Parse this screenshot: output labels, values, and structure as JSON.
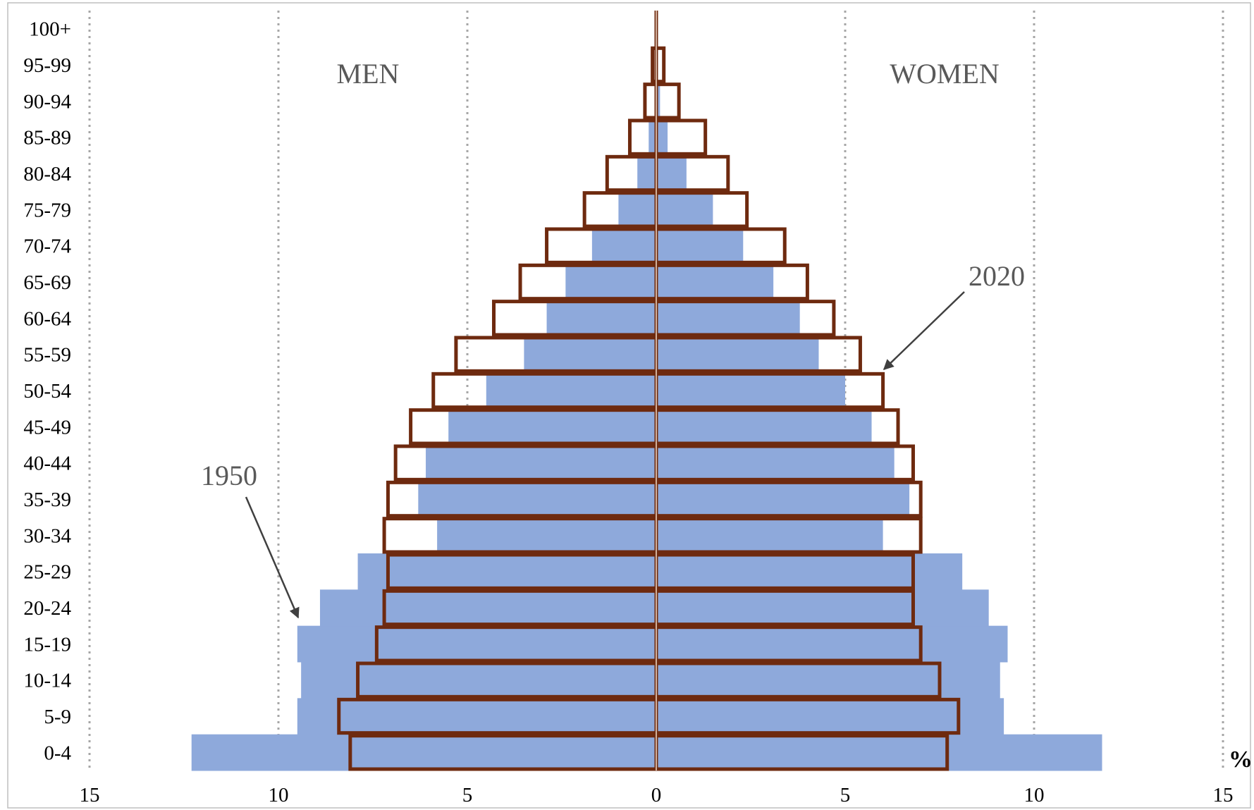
{
  "chart_data": {
    "type": "bar",
    "subtype": "population-pyramid",
    "categories": [
      "0-4",
      "5-9",
      "10-14",
      "15-19",
      "20-24",
      "25-29",
      "30-34",
      "35-39",
      "40-44",
      "45-49",
      "50-54",
      "55-59",
      "60-64",
      "65-69",
      "70-74",
      "75-79",
      "80-84",
      "85-89",
      "90-94",
      "95-99",
      "100+"
    ],
    "side_labels": {
      "left": "MEN",
      "right": "WOMEN"
    },
    "unit_label": "%",
    "xlim": [
      -15,
      15
    ],
    "x_ticks": [
      -15,
      -10,
      -5,
      0,
      5,
      10,
      15
    ],
    "x_tick_labels": [
      "15",
      "10",
      "5",
      "0",
      "5",
      "10",
      "15"
    ],
    "grid": "vertical dotted",
    "series": [
      {
        "name": "1950",
        "style": "filled",
        "color": "#8EA9DB",
        "men": [
          12.3,
          9.5,
          9.4,
          9.5,
          8.9,
          7.9,
          5.8,
          6.3,
          6.1,
          5.5,
          4.5,
          3.5,
          2.9,
          2.4,
          1.7,
          1.0,
          0.5,
          0.2,
          0.0,
          0.0,
          0.0
        ],
        "women": [
          11.8,
          9.2,
          9.1,
          9.3,
          8.8,
          8.1,
          6.0,
          6.7,
          6.3,
          5.7,
          5.0,
          4.3,
          3.8,
          3.1,
          2.3,
          1.5,
          0.8,
          0.3,
          0.1,
          0.0,
          0.0
        ]
      },
      {
        "name": "2020",
        "style": "outline",
        "color": "#6E2A0F",
        "men": [
          8.1,
          8.4,
          7.9,
          7.4,
          7.2,
          7.1,
          7.2,
          7.1,
          6.9,
          6.5,
          5.9,
          5.3,
          4.3,
          3.6,
          2.9,
          1.9,
          1.3,
          0.7,
          0.3,
          0.1,
          0.0
        ],
        "women": [
          7.7,
          8.0,
          7.5,
          7.0,
          6.8,
          6.8,
          7.0,
          7.0,
          6.8,
          6.4,
          6.0,
          5.4,
          4.7,
          4.0,
          3.4,
          2.4,
          1.9,
          1.3,
          0.6,
          0.2,
          0.0
        ]
      }
    ],
    "annotations": [
      {
        "text": "1950",
        "points_to": "1950 men 20-24"
      },
      {
        "text": "2020",
        "points_to": "2020 women 50-54"
      }
    ]
  }
}
